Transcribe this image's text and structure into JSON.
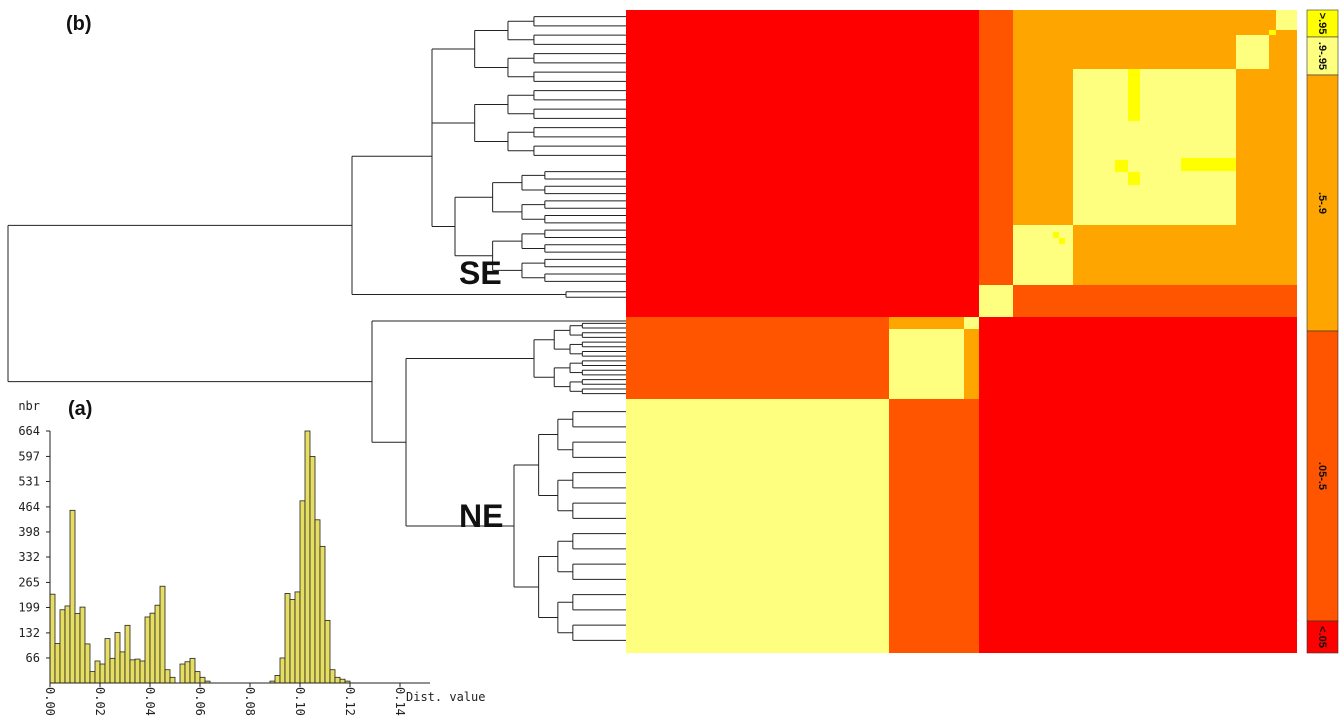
{
  "panels": {
    "a": "(a)",
    "b": "(b)"
  },
  "clusters": {
    "top": "SE",
    "bottom": "NE"
  },
  "colors": {
    "lt05": "#ff0000",
    "c05_5": "#ff5500",
    "c5_9": "#ffa500",
    "c9_95": "#ffff7f",
    "gt95": "#ffff00",
    "bar_fill": "#e6de62"
  },
  "legend": [
    {
      "label": ">.95",
      "color": "#ffff00"
    },
    {
      "label": ".9-.95",
      "color": "#ffff7f"
    },
    {
      "label": ".5-.9",
      "color": "#ffa500"
    },
    {
      "label": ".05-.5",
      "color": "#ff5500"
    },
    {
      "label": "<.05",
      "color": "#ff0000"
    }
  ],
  "chart_data": {
    "type": "bar",
    "xlabel": "Dist. value",
    "ylabel": "nbr",
    "yticks": [
      "664",
      "597",
      "531",
      "464",
      "398",
      "332",
      "265",
      "199",
      "132",
      "66"
    ],
    "xticks": [
      "0.00",
      "0.02",
      "0.04",
      "0.06",
      "0.08",
      "0.10",
      "0.12",
      "0.14"
    ],
    "ylim": [
      0,
      664
    ],
    "xlim": [
      0,
      0.152
    ],
    "bin_width": 0.002,
    "bin_start": 0,
    "values": [
      234,
      104,
      193,
      203,
      455,
      183,
      200,
      103,
      30,
      58,
      50,
      117,
      65,
      133,
      82,
      152,
      61,
      63,
      58,
      174,
      184,
      205,
      255,
      35,
      15,
      0,
      50,
      56,
      65,
      30,
      15,
      5,
      0,
      0,
      0,
      0,
      0,
      0,
      0,
      0,
      0,
      0,
      0,
      0,
      5,
      20,
      66,
      236,
      220,
      240,
      480,
      664,
      597,
      430,
      360,
      165,
      35,
      15,
      10,
      5
    ]
  }
}
